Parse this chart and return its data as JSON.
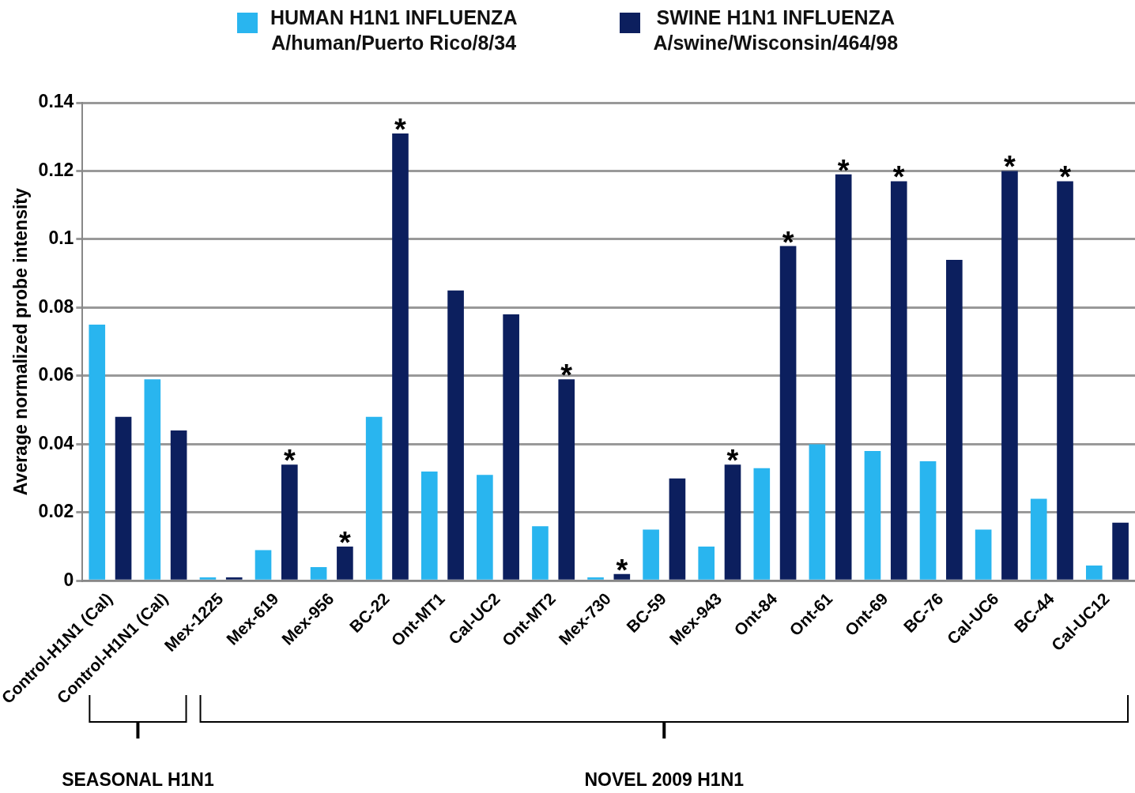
{
  "chart_data": {
    "type": "bar",
    "ylabel": "Average normalized probe intensity",
    "categories": [
      "Control-H1N1 (Cal)",
      "Control-H1N1 (Cal)",
      "Mex-1225",
      "Mex-619",
      "Mex-956",
      "BC-22",
      "Ont-MT1",
      "Cal-UC2",
      "Ont-MT2",
      "Mex-730",
      "BC-59",
      "Mex-943",
      "Ont-84",
      "Ont-61",
      "Ont-69",
      "BC-76",
      "Cal-UC6",
      "BC-44",
      "Cal-UC12"
    ],
    "series": [
      {
        "name": "HUMAN H1N1 INFLUENZA\nA/human/Puerto Rico/8/34",
        "color": "#29b5ef",
        "values": [
          0.075,
          0.059,
          0.001,
          0.009,
          0.004,
          0.048,
          0.032,
          0.031,
          0.016,
          0.001,
          0.015,
          0.01,
          0.033,
          0.04,
          0.038,
          0.035,
          0.015,
          0.024,
          0.0045
        ]
      },
      {
        "name": "SWINE H1N1 INFLUENZA\nA/swine/Wisconsin/464/98",
        "color": "#0c1f5e",
        "values": [
          0.048,
          0.044,
          0.001,
          0.034,
          0.01,
          0.131,
          0.085,
          0.078,
          0.059,
          0.002,
          0.03,
          0.034,
          0.098,
          0.119,
          0.117,
          0.094,
          0.12,
          0.117,
          0.017
        ],
        "value_labels": [
          null,
          null,
          null,
          "*",
          "*",
          "*",
          null,
          null,
          "*",
          "*",
          null,
          "*",
          "*",
          "*",
          "*",
          null,
          "*",
          "*",
          null
        ]
      }
    ],
    "ylim": [
      0,
      0.14
    ],
    "yticks": [
      0,
      0.02,
      0.04,
      0.06,
      0.08,
      0.1,
      0.12,
      0.14
    ],
    "grid": "y",
    "legend": "top",
    "annotations": [
      "SEASONAL H1N1",
      "NOVEL 2009 H1N1"
    ]
  }
}
